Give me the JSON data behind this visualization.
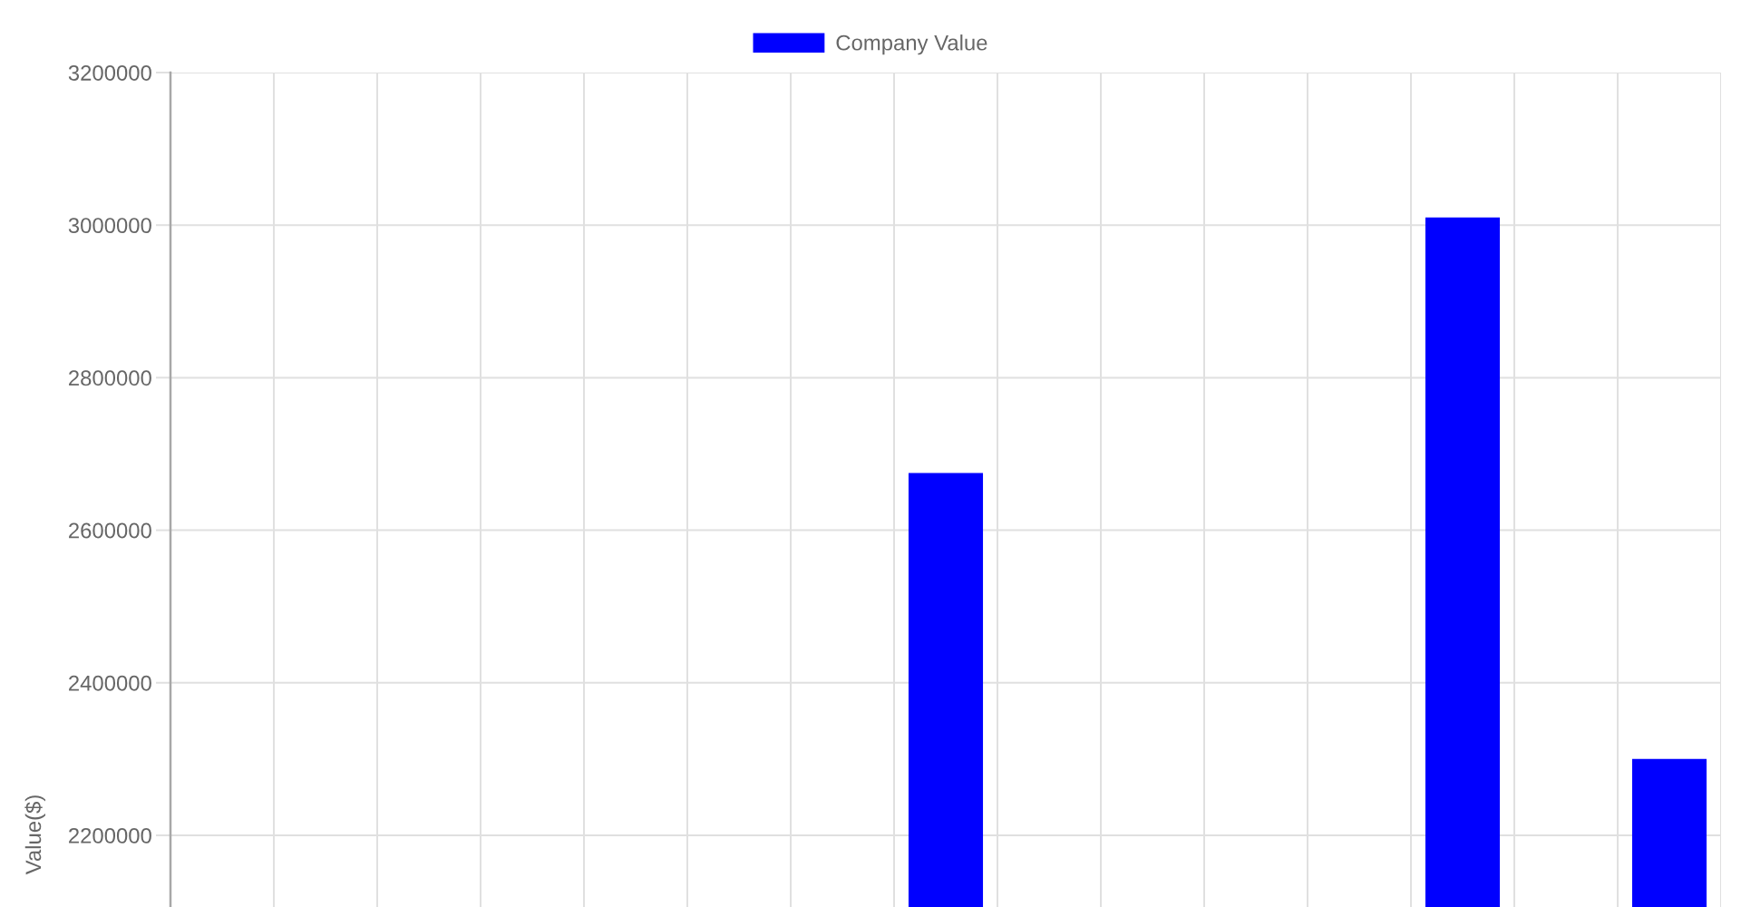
{
  "chart_data": {
    "type": "bar",
    "categories": [
      null,
      null,
      null,
      null,
      null,
      null,
      null,
      null,
      null,
      null,
      null,
      null,
      null,
      null,
      null
    ],
    "series": [
      {
        "name": "Company Value",
        "color": "#0000ff",
        "values": [
          null,
          null,
          null,
          null,
          null,
          null,
          null,
          2675000,
          null,
          null,
          null,
          null,
          3010000,
          null,
          2300000
        ]
      }
    ],
    "ylabel": "Value($)",
    "ylim": [
      2106000,
      3200000
    ],
    "yticks": [
      2200000,
      2400000,
      2600000,
      2800000,
      3000000,
      3200000
    ],
    "grid": true,
    "legend": "top",
    "tick_labels": "y"
  }
}
